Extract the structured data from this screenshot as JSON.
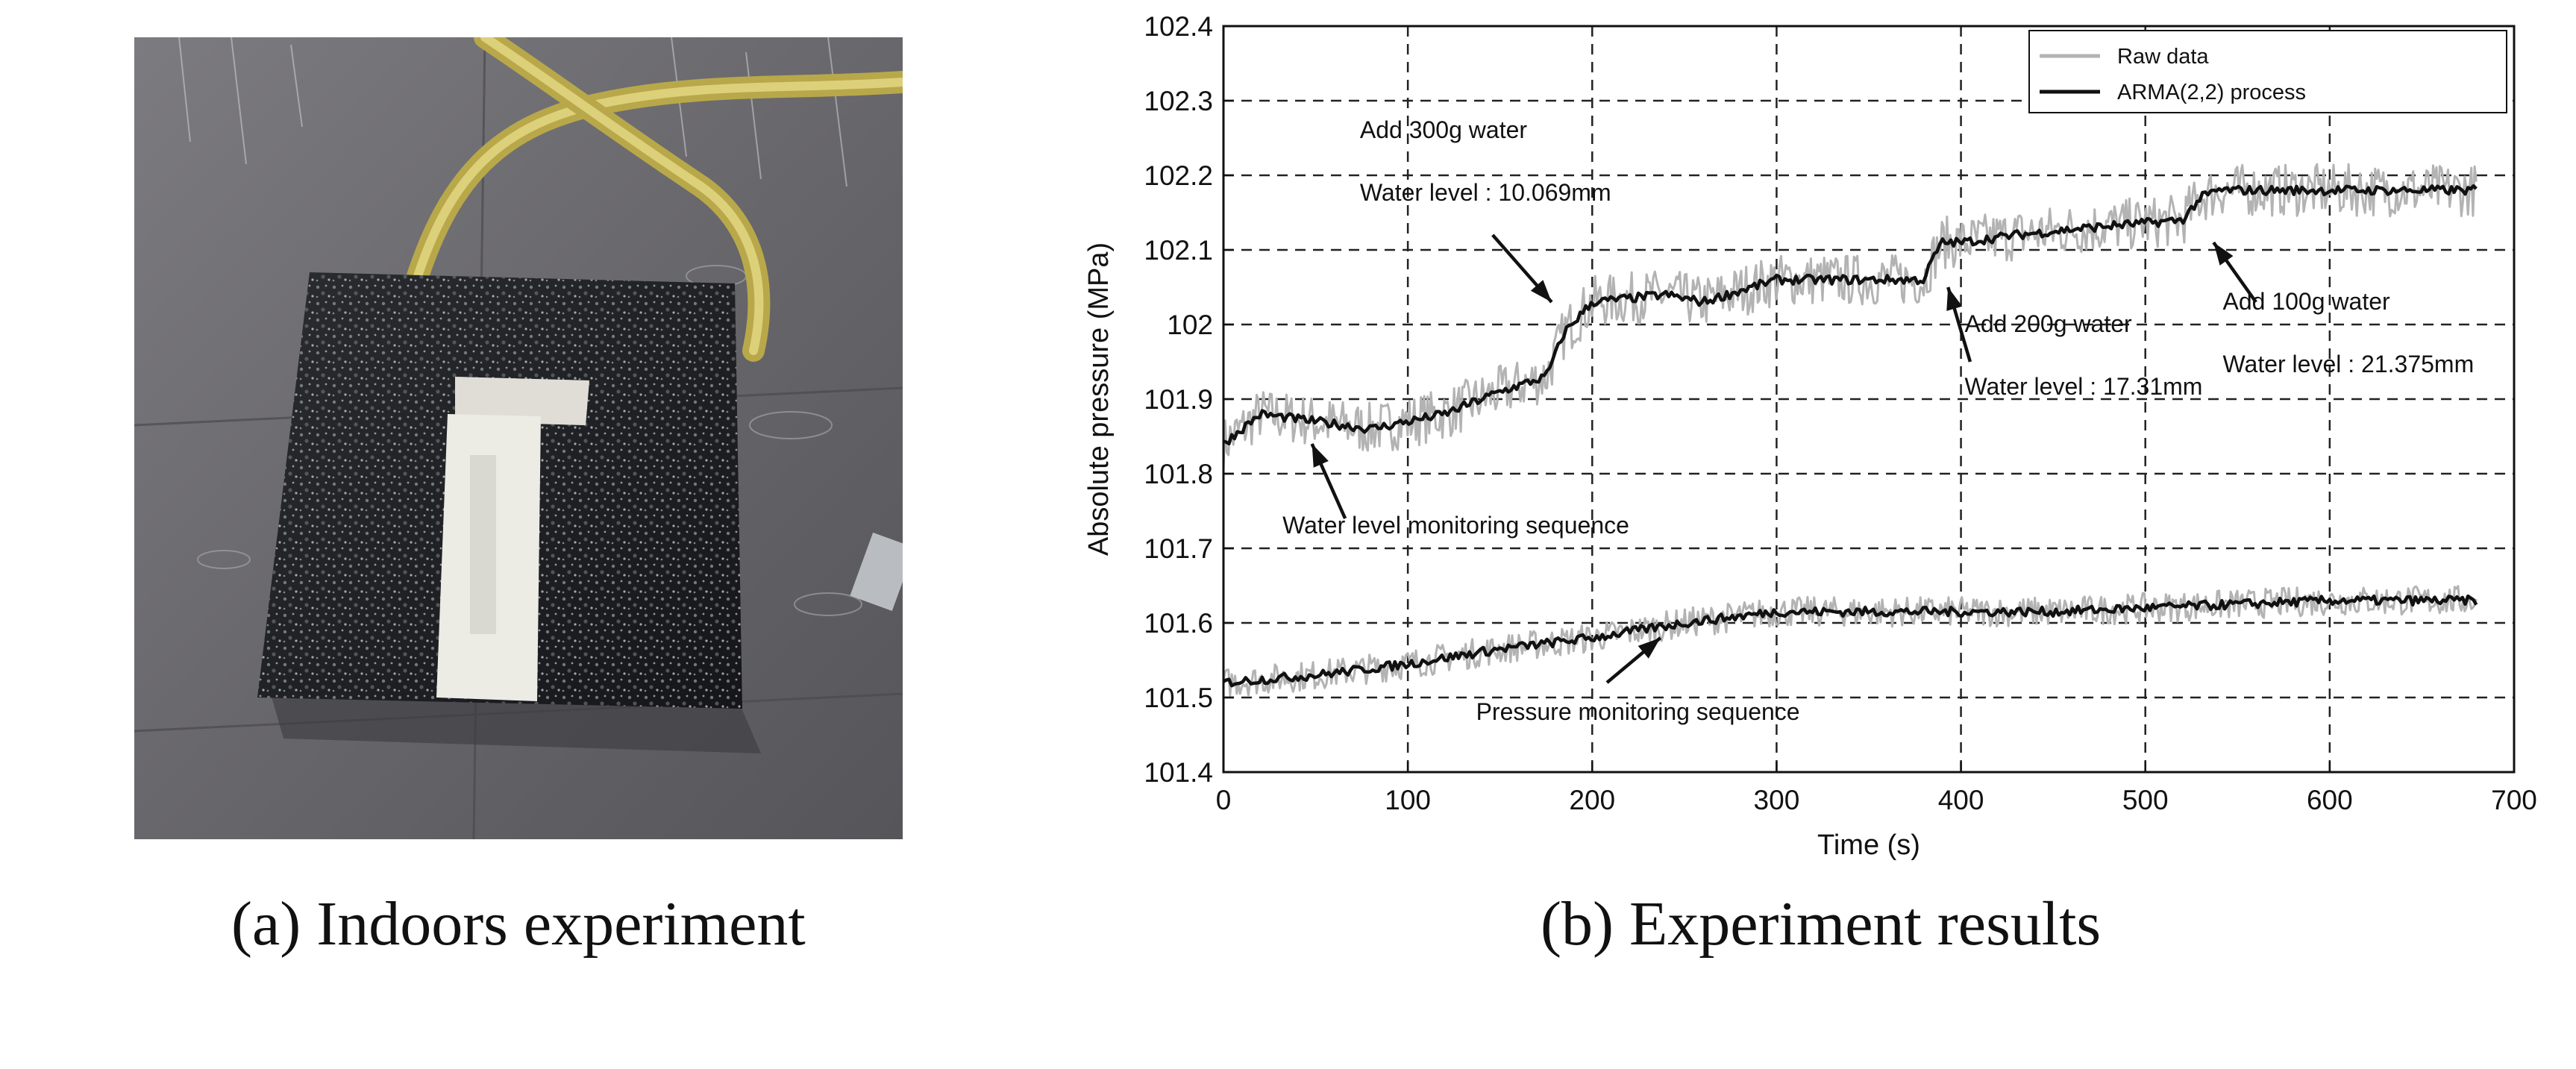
{
  "figure": {
    "caption_a": "(a) Indoors experiment",
    "caption_b": "(b) Experiment results"
  },
  "chart_data": {
    "type": "line",
    "xlabel": "Time (s)",
    "ylabel": "Absolute pressure (MPa)",
    "xlim": [
      0,
      700
    ],
    "ylim": [
      101.4,
      102.4
    ],
    "xticks": [
      "0",
      "100",
      "200",
      "300",
      "400",
      "500",
      "600",
      "700"
    ],
    "yticks": [
      "101.4",
      "101.5",
      "101.6",
      "101.7",
      "101.8",
      "101.9",
      "102",
      "102.1",
      "102.2",
      "102.3",
      "102.4"
    ],
    "grid": true,
    "legend_position": "top-right",
    "colors": {
      "raw": "#b3b3b3",
      "arma": "#111111"
    },
    "series": [
      {
        "name": "Raw data",
        "group": "Water level monitoring sequence",
        "noise": 0.035,
        "x": [
          0,
          20,
          50,
          80,
          120,
          150,
          175,
          180,
          185,
          200,
          240,
          260,
          300,
          340,
          380,
          385,
          390,
          400,
          430,
          470,
          520,
          530,
          540,
          600,
          680
        ],
        "y": [
          101.84,
          101.88,
          101.87,
          101.86,
          101.88,
          101.91,
          101.93,
          101.96,
          101.99,
          102.03,
          102.04,
          102.03,
          102.06,
          102.06,
          102.06,
          102.09,
          102.11,
          102.11,
          102.12,
          102.13,
          102.14,
          102.17,
          102.18,
          102.18,
          102.18
        ]
      },
      {
        "name": "ARMA(2,2) process",
        "group": "Water level monitoring sequence",
        "x": [
          0,
          20,
          50,
          80,
          120,
          150,
          175,
          180,
          185,
          200,
          240,
          260,
          300,
          340,
          380,
          385,
          390,
          400,
          430,
          470,
          520,
          530,
          540,
          600,
          680
        ],
        "y": [
          101.84,
          101.88,
          101.87,
          101.86,
          101.88,
          101.91,
          101.93,
          101.96,
          101.99,
          102.03,
          102.04,
          102.03,
          102.06,
          102.06,
          102.06,
          102.09,
          102.11,
          102.11,
          102.12,
          102.13,
          102.14,
          102.17,
          102.18,
          102.18,
          102.18
        ]
      },
      {
        "name": "Raw data",
        "group": "Pressure monitoring sequence",
        "noise": 0.02,
        "x": [
          0,
          50,
          100,
          150,
          200,
          250,
          300,
          350,
          400,
          450,
          500,
          550,
          600,
          680
        ],
        "y": [
          101.52,
          101.53,
          101.545,
          101.565,
          101.58,
          101.6,
          101.615,
          101.615,
          101.615,
          101.615,
          101.62,
          101.625,
          101.63,
          101.63
        ]
      },
      {
        "name": "ARMA(2,2) process",
        "group": "Pressure monitoring sequence",
        "x": [
          0,
          50,
          100,
          150,
          200,
          250,
          300,
          350,
          400,
          450,
          500,
          550,
          600,
          680
        ],
        "y": [
          101.52,
          101.53,
          101.545,
          101.565,
          101.58,
          101.6,
          101.615,
          101.615,
          101.615,
          101.615,
          101.62,
          101.625,
          101.63,
          101.63
        ]
      }
    ],
    "annotations": [
      {
        "lines": [
          "Add 300g water",
          "Water level : 10.069mm"
        ],
        "text_at": [
          74,
          102.25
        ],
        "arrow_from": [
          146,
          102.12
        ],
        "arrow_to": [
          178,
          102.03
        ]
      },
      {
        "lines": [
          "Add 200g water",
          "Water level : 17.31mm"
        ],
        "text_at": [
          402,
          101.99
        ],
        "arrow_from": [
          405,
          101.95
        ],
        "arrow_to": [
          393,
          102.05
        ]
      },
      {
        "lines": [
          "Add 100g water",
          "Water level : 21.375mm"
        ],
        "text_at": [
          542,
          102.02
        ],
        "arrow_from": [
          560,
          102.03
        ],
        "arrow_to": [
          537,
          102.11
        ]
      },
      {
        "lines": [
          "Water level monitoring sequence"
        ],
        "text_at": [
          32,
          101.72
        ],
        "arrow_from": [
          66,
          101.74
        ],
        "arrow_to": [
          48,
          101.84
        ]
      },
      {
        "lines": [
          "Pressure monitoring sequence"
        ],
        "text_at": [
          137,
          101.47
        ],
        "arrow_from": [
          208,
          101.52
        ],
        "arrow_to": [
          237,
          101.58
        ]
      }
    ]
  }
}
